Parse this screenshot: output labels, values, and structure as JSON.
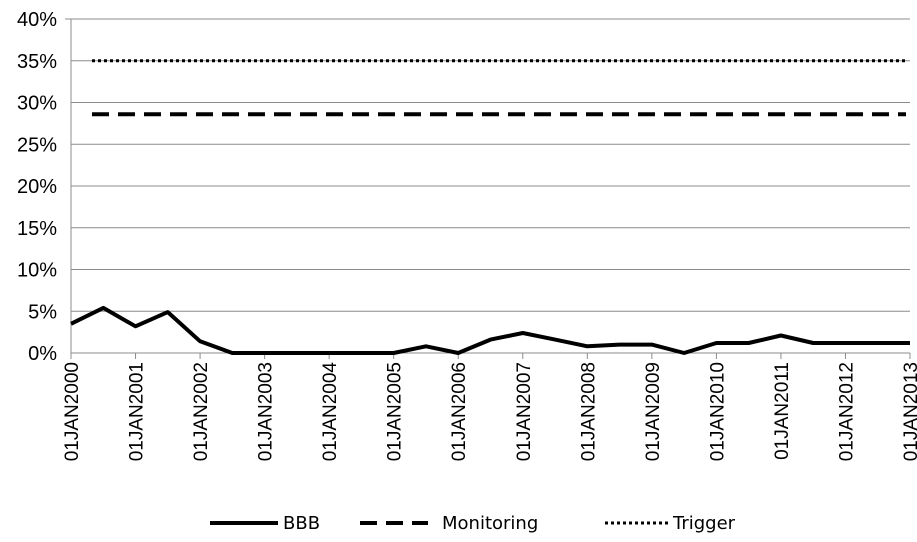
{
  "chart_data": {
    "type": "line",
    "title": "",
    "xlabel": "",
    "ylabel": "",
    "ylim": [
      0,
      0.4
    ],
    "y_ticks": [
      "0%",
      "5%",
      "10%",
      "15%",
      "20%",
      "25%",
      "30%",
      "35%",
      "40%"
    ],
    "y_tick_values": [
      0,
      0.05,
      0.1,
      0.15,
      0.2,
      0.25,
      0.3,
      0.35,
      0.4
    ],
    "x_tick_labels": [
      "01JAN2000",
      "01JAN2001",
      "01JAN2002",
      "01JAN2003",
      "01JAN2004",
      "01JAN2005",
      "01JAN2006",
      "01JAN2007",
      "01JAN2008",
      "01JAN2009",
      "01JAN2010",
      "01JAN2011",
      "01JAN2012",
      "01JAN2013"
    ],
    "grid": "horizontal",
    "legend_position": "bottom",
    "series": [
      {
        "name": "BBB",
        "style": "solid",
        "color": "#000000",
        "points": [
          [
            "01JAN2000",
            0.035
          ],
          [
            "01JUL2000",
            0.054
          ],
          [
            "01JAN2001",
            0.032
          ],
          [
            "01JUL2001",
            0.049
          ],
          [
            "01JAN2002",
            0.014
          ],
          [
            "01JUL2002",
            0.0
          ],
          [
            "01JAN2003",
            0.0
          ],
          [
            "01JUL2003",
            0.0
          ],
          [
            "01JAN2004",
            0.0
          ],
          [
            "01JUL2004",
            0.0
          ],
          [
            "01JAN2005",
            0.0
          ],
          [
            "01JUL2005",
            0.008
          ],
          [
            "01JAN2006",
            0.0
          ],
          [
            "01JUL2006",
            0.016
          ],
          [
            "01JAN2007",
            0.024
          ],
          [
            "01JUL2007",
            0.016
          ],
          [
            "01JAN2008",
            0.008
          ],
          [
            "01JUL2008",
            0.01
          ],
          [
            "01JAN2009",
            0.01
          ],
          [
            "01JUL2009",
            0.0
          ],
          [
            "01JAN2010",
            0.012
          ],
          [
            "01JUL2010",
            0.012
          ],
          [
            "01JAN2011",
            0.021
          ],
          [
            "01JUL2011",
            0.012
          ],
          [
            "01JAN2012",
            0.012
          ],
          [
            "01JUL2012",
            0.012
          ],
          [
            "01JAN2013",
            0.012
          ]
        ]
      },
      {
        "name": "Monitoring",
        "style": "dashed",
        "color": "#000000",
        "value": 0.286
      },
      {
        "name": "Trigger",
        "style": "dotted",
        "color": "#000000",
        "value": 0.35
      }
    ]
  }
}
